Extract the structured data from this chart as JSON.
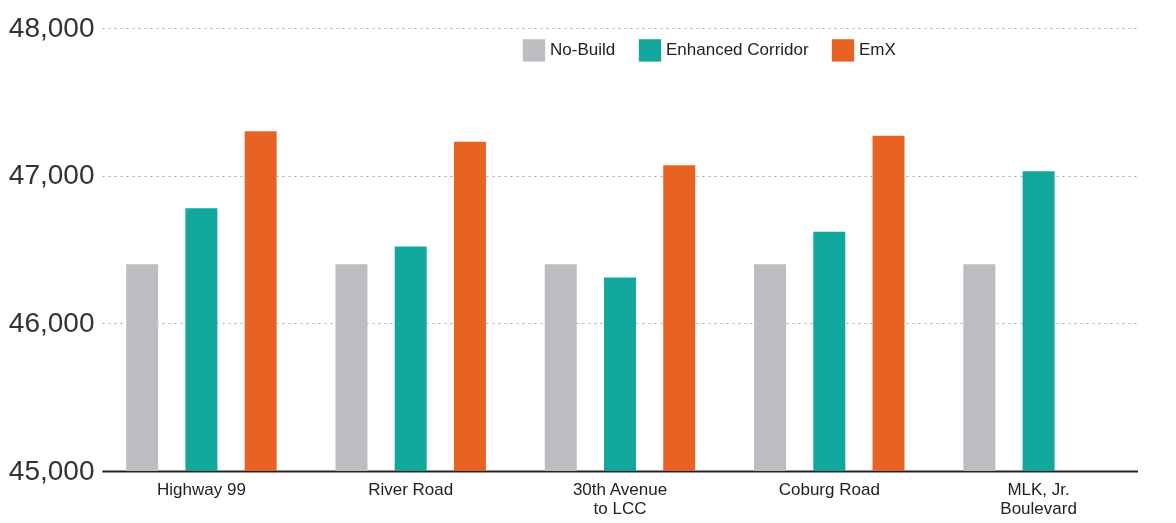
{
  "chart_data": {
    "type": "bar",
    "categories": [
      "Highway 99",
      "River Road",
      "30th Avenue\nto LCC",
      "Coburg Road",
      "MLK, Jr.\nBoulevard"
    ],
    "series": [
      {
        "name": "No-Build",
        "color": "#bcbdc0",
        "values": [
          46400,
          46400,
          46400,
          46400,
          46400
        ]
      },
      {
        "name": "Enhanced Corridor",
        "color": "#12a89d",
        "values": [
          46780,
          46520,
          46310,
          46620,
          47030
        ]
      },
      {
        "name": "EmX",
        "color": "#e86224",
        "values": [
          47300,
          47230,
          47070,
          47270,
          null
        ]
      }
    ],
    "ylim": [
      45000,
      48000
    ],
    "yticks": [
      {
        "value": 45000,
        "label": "45,000"
      },
      {
        "value": 46000,
        "label": "46,000"
      },
      {
        "value": 47000,
        "label": "47,000"
      },
      {
        "value": 48000,
        "label": "48,000"
      }
    ],
    "grid": "y",
    "legend": "top"
  }
}
